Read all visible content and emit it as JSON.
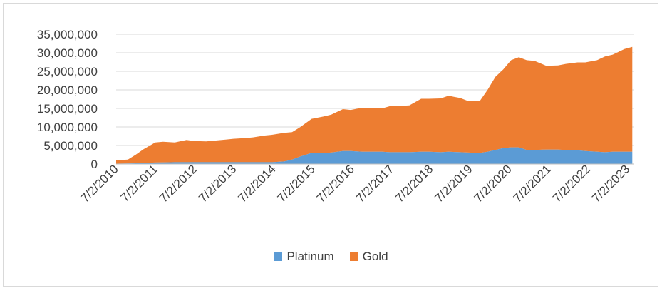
{
  "chart_data": {
    "type": "area",
    "stacked": true,
    "title": "",
    "xlabel": "",
    "ylabel": "",
    "ylim": [
      0,
      35000000
    ],
    "y_ticks": [
      "35,000,000",
      "30,000,000",
      "25,000,000",
      "20,000,000",
      "15,000,000",
      "10,000,000",
      "5,000,000",
      "0"
    ],
    "y_tick_values": [
      35000000,
      30000000,
      25000000,
      20000000,
      15000000,
      10000000,
      5000000,
      0
    ],
    "x_tick_labels": [
      "7/2/2010",
      "7/2/2011",
      "7/2/2012",
      "7/2/2013",
      "7/2/2014",
      "7/2/2015",
      "7/2/2016",
      "7/2/2017",
      "7/2/2018",
      "7/2/2019",
      "7/2/2020",
      "7/2/2021",
      "7/2/2022",
      "7/2/2023"
    ],
    "xlim": [
      2010.5,
      2023.75
    ],
    "grid": true,
    "legend_position": "bottom",
    "colors": {
      "Platinum": "#5b9bd5",
      "Gold": "#ed7d31",
      "grid": "#d9d9d9"
    },
    "x": [
      2010.5,
      2010.8,
      2011.0,
      2011.2,
      2011.5,
      2011.7,
      2012.0,
      2012.3,
      2012.5,
      2012.8,
      2013.0,
      2013.3,
      2013.5,
      2013.8,
      2014.0,
      2014.3,
      2014.5,
      2014.8,
      2015.0,
      2015.2,
      2015.5,
      2015.8,
      2016.0,
      2016.3,
      2016.5,
      2016.8,
      2017.0,
      2017.3,
      2017.5,
      2017.8,
      2018.0,
      2018.3,
      2018.5,
      2018.8,
      2019.0,
      2019.3,
      2019.5,
      2019.8,
      2020.0,
      2020.2,
      2020.4,
      2020.6,
      2020.8,
      2021.0,
      2021.2,
      2021.5,
      2021.8,
      2022.0,
      2022.3,
      2022.5,
      2022.8,
      2023.0,
      2023.2,
      2023.5,
      2023.7
    ],
    "series": [
      {
        "name": "Platinum",
        "values": [
          100000,
          150000,
          200000,
          300000,
          400000,
          450000,
          500000,
          500000,
          500000,
          500000,
          500000,
          500000,
          500000,
          500000,
          500000,
          500000,
          500000,
          700000,
          1200000,
          2000000,
          3000000,
          3000000,
          3100000,
          3500000,
          3500000,
          3300000,
          3300000,
          3300000,
          3200000,
          3200000,
          3200000,
          3300000,
          3300000,
          3200000,
          3300000,
          3200000,
          3100000,
          3000000,
          3300000,
          3800000,
          4300000,
          4500000,
          4500000,
          3800000,
          3800000,
          3900000,
          3900000,
          3800000,
          3700000,
          3500000,
          3300000,
          3200000,
          3300000,
          3300000,
          3300000
        ]
      },
      {
        "name": "Gold",
        "values": [
          900000,
          1050000,
          2300000,
          3700000,
          5400000,
          5550000,
          5300000,
          6000000,
          5700000,
          5600000,
          5800000,
          6100000,
          6300000,
          6500000,
          6700000,
          7200000,
          7400000,
          7700000,
          7400000,
          7900000,
          9200000,
          9800000,
          10200000,
          11300000,
          11100000,
          11900000,
          11800000,
          11700000,
          12400000,
          12500000,
          12600000,
          14300000,
          14300000,
          14500000,
          15100000,
          14600000,
          13900000,
          14000000,
          16700000,
          19700000,
          21200000,
          23500000,
          24300000,
          24200000,
          24000000,
          22600000,
          22700000,
          23200000,
          23700000,
          23900000,
          24700000,
          25800000,
          26200000,
          27700000,
          28300000
        ]
      }
    ]
  }
}
